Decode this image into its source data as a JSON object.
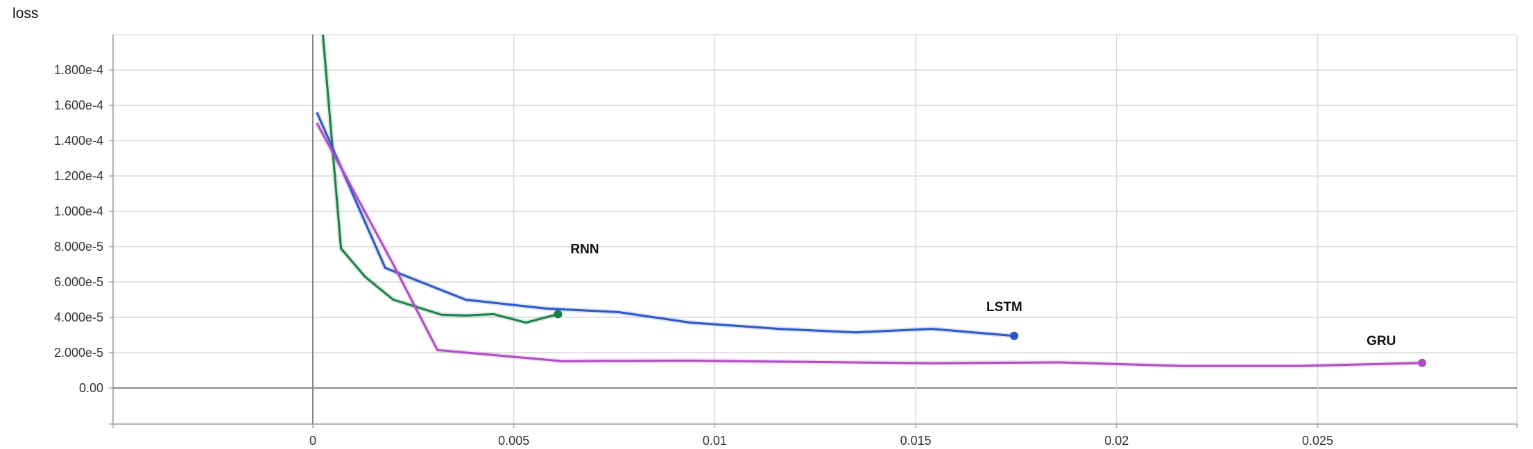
{
  "chart_data": {
    "type": "line",
    "title": "loss",
    "xlim": [
      -0.005,
      0.0295
    ],
    "ylim": [
      -2e-05,
      0.0002
    ],
    "x_ticks": [
      {
        "value": 0,
        "label": "0"
      },
      {
        "value": 0.005,
        "label": "0.005"
      },
      {
        "value": 0.01,
        "label": "0.01"
      },
      {
        "value": 0.015,
        "label": "0.015"
      },
      {
        "value": 0.02,
        "label": "0.02"
      },
      {
        "value": 0.025,
        "label": "0.025"
      }
    ],
    "y_ticks": [
      {
        "value": 0.00018,
        "label": "1.800e-4"
      },
      {
        "value": 0.00016,
        "label": "1.600e-4"
      },
      {
        "value": 0.00014,
        "label": "1.400e-4"
      },
      {
        "value": 0.00012,
        "label": "1.200e-4"
      },
      {
        "value": 0.0001,
        "label": "1.000e-4"
      },
      {
        "value": 8e-05,
        "label": "8.000e-5"
      },
      {
        "value": 6e-05,
        "label": "6.000e-5"
      },
      {
        "value": 4e-05,
        "label": "4.000e-5"
      },
      {
        "value": 2e-05,
        "label": "2.000e-5"
      },
      {
        "value": 0,
        "label": "0.00"
      }
    ],
    "grid": true,
    "series": [
      {
        "name": "RNN",
        "color": "#1a7f47",
        "x": [
          0.00025,
          0.0007,
          0.0013,
          0.002,
          0.0032,
          0.0038,
          0.0045,
          0.0053,
          0.0061
        ],
        "y": [
          0.0002,
          7.9e-05,
          6.3e-05,
          5e-05,
          4.15e-05,
          4.1e-05,
          4.18e-05,
          3.7e-05,
          4.18e-05
        ]
      },
      {
        "name": "LSTM",
        "color": "#2a56c6",
        "x": [
          0.0001,
          0.0018,
          0.0038,
          0.0058,
          0.0076,
          0.0094,
          0.0116,
          0.0135,
          0.0154,
          0.01745
        ],
        "y": [
          0.000156,
          6.8e-05,
          5e-05,
          4.5e-05,
          4.3e-05,
          3.7e-05,
          3.35e-05,
          3.15e-05,
          3.35e-05,
          2.95e-05
        ]
      },
      {
        "name": "GRU",
        "color": "#b04cc4",
        "x": [
          0.0001,
          0.002,
          0.0031,
          0.0062,
          0.0094,
          0.0123,
          0.0154,
          0.0186,
          0.0216,
          0.0246,
          0.0276
        ],
        "y": [
          0.00015,
          7e-05,
          2.15e-05,
          1.52e-05,
          1.55e-05,
          1.48e-05,
          1.4e-05,
          1.45e-05,
          1.25e-05,
          1.25e-05,
          1.42e-05
        ]
      }
    ],
    "annotations": [
      {
        "text": "RNN",
        "series": "RNN"
      },
      {
        "text": "LSTM",
        "series": "LSTM"
      },
      {
        "text": "GRU",
        "series": "GRU"
      }
    ]
  }
}
